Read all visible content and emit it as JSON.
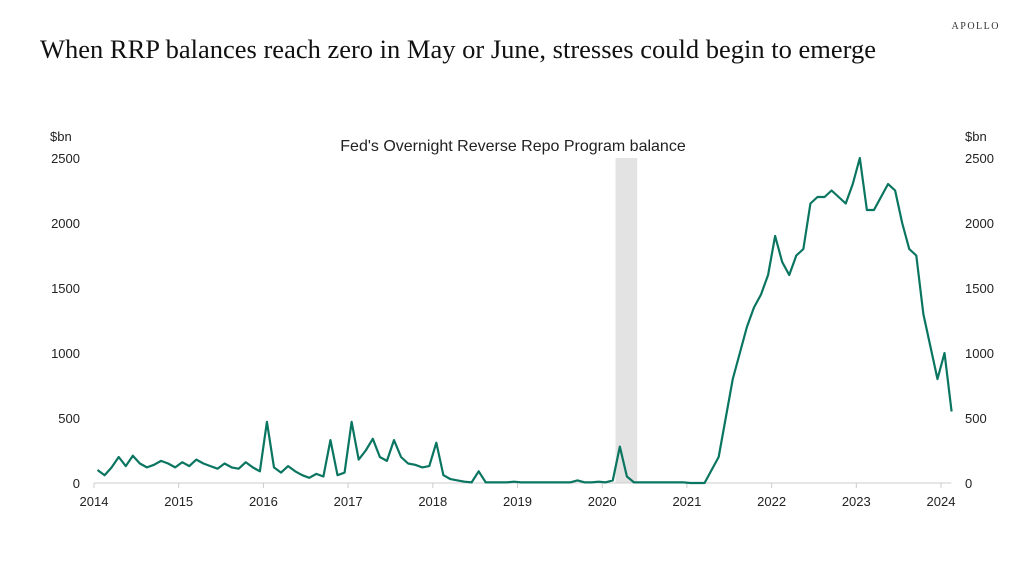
{
  "brand": "APOLLO",
  "title": "When RRP balances reach zero in May or June, stresses could begin to emerge",
  "chart_data": {
    "type": "line",
    "title": "Fed's Overnight Reverse Repo Program balance",
    "ylabel_left": "$bn",
    "ylabel_right": "$bn",
    "ylim": [
      0,
      2500
    ],
    "yticks": [
      0,
      500,
      1000,
      1500,
      2000,
      2500
    ],
    "xlim": [
      "2014-01-01",
      "2024-02-15"
    ],
    "xticks": [
      "2014",
      "2015",
      "2016",
      "2017",
      "2018",
      "2019",
      "2020",
      "2021",
      "2022",
      "2023",
      "2024"
    ],
    "grid": false,
    "line_color": "#0a7560",
    "shade_color": "#e3e3e3",
    "shaded_period": [
      "2020-02-28",
      "2020-05-30"
    ],
    "series": [
      {
        "x": [
          "2014-01",
          "2014-02",
          "2014-03",
          "2014-04",
          "2014-05",
          "2014-06",
          "2014-07",
          "2014-08",
          "2014-09",
          "2014-10",
          "2014-11",
          "2014-12",
          "2015-01",
          "2015-02",
          "2015-03",
          "2015-04",
          "2015-05",
          "2015-06",
          "2015-07",
          "2015-08",
          "2015-09",
          "2015-10",
          "2015-11",
          "2015-12",
          "2016-01",
          "2016-02",
          "2016-03",
          "2016-04",
          "2016-05",
          "2016-06",
          "2016-07",
          "2016-08",
          "2016-09",
          "2016-10",
          "2016-11",
          "2016-12",
          "2017-01",
          "2017-02",
          "2017-03",
          "2017-04",
          "2017-05",
          "2017-06",
          "2017-07",
          "2017-08",
          "2017-09",
          "2017-10",
          "2017-11",
          "2017-12",
          "2018-01",
          "2018-02",
          "2018-03",
          "2018-04",
          "2018-05",
          "2018-06",
          "2018-07",
          "2018-08",
          "2018-09",
          "2018-10",
          "2018-11",
          "2018-12",
          "2019-01",
          "2019-02",
          "2019-03",
          "2019-04",
          "2019-05",
          "2019-06",
          "2019-07",
          "2019-08",
          "2019-09",
          "2019-10",
          "2019-11",
          "2019-12",
          "2020-01",
          "2020-02",
          "2020-03",
          "2020-04",
          "2020-05",
          "2020-06",
          "2020-07",
          "2020-08",
          "2020-09",
          "2020-10",
          "2020-11",
          "2020-12",
          "2021-01",
          "2021-02",
          "2021-03",
          "2021-04",
          "2021-05",
          "2021-06",
          "2021-07",
          "2021-08",
          "2021-09",
          "2021-10",
          "2021-11",
          "2021-12",
          "2022-01",
          "2022-02",
          "2022-03",
          "2022-04",
          "2022-05",
          "2022-06",
          "2022-07",
          "2022-08",
          "2022-09",
          "2022-10",
          "2022-11",
          "2022-12",
          "2023-01",
          "2023-02",
          "2023-03",
          "2023-04",
          "2023-05",
          "2023-06",
          "2023-07",
          "2023-08",
          "2023-09",
          "2023-10",
          "2023-11",
          "2023-12",
          "2024-01",
          "2024-02"
        ],
        "values": [
          100,
          60,
          120,
          200,
          130,
          210,
          150,
          120,
          140,
          170,
          150,
          120,
          160,
          130,
          180,
          150,
          130,
          110,
          150,
          120,
          110,
          160,
          120,
          90,
          470,
          120,
          80,
          130,
          90,
          60,
          40,
          70,
          50,
          330,
          60,
          80,
          470,
          180,
          250,
          340,
          200,
          170,
          330,
          200,
          150,
          140,
          120,
          130,
          310,
          60,
          30,
          20,
          10,
          5,
          90,
          5,
          5,
          5,
          5,
          10,
          5,
          5,
          5,
          5,
          5,
          5,
          5,
          5,
          20,
          5,
          5,
          10,
          5,
          20,
          280,
          50,
          5,
          5,
          5,
          5,
          5,
          5,
          5,
          5,
          0,
          0,
          0,
          100,
          200,
          500,
          800,
          1000,
          1200,
          1350,
          1450,
          1600,
          1900,
          1700,
          1600,
          1750,
          1800,
          2150,
          2200,
          2200,
          2250,
          2200,
          2150,
          2300,
          2500,
          2100,
          2100,
          2200,
          2300,
          2250,
          2000,
          1800,
          1750,
          1300,
          1050,
          800,
          1000,
          550
        ]
      }
    ]
  }
}
